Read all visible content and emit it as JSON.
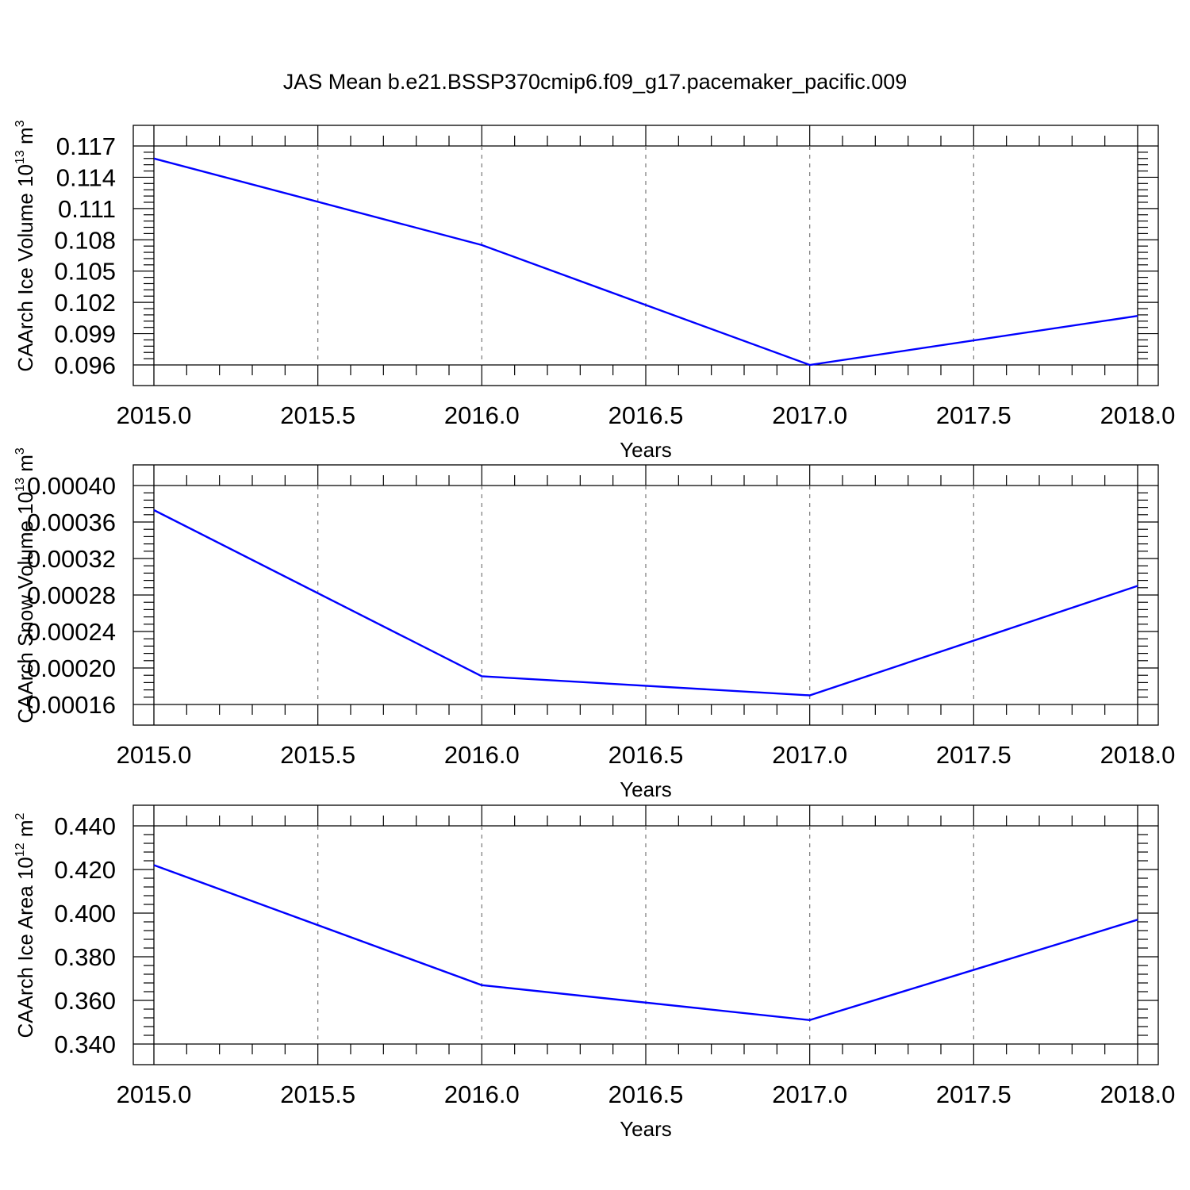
{
  "title": "JAS Mean b.e21.BSSP370cmip6.f09_g17.pacemaker_pacific.009",
  "colors": {
    "series": "#0000ff",
    "axes": "#000000",
    "grid": "#777777"
  },
  "chart_data": [
    {
      "type": "line",
      "ylabel": "CAArch Ice Volume 10",
      "ylabel_exp": "13",
      "ylabel_unit": " m",
      "ylabel_unit_exp": "3",
      "xlabel": "Years",
      "xlim": [
        2015.0,
        2018.0
      ],
      "ylim": [
        0.096,
        0.117
      ],
      "xticks": [
        "2015.0",
        "2015.5",
        "2016.0",
        "2016.5",
        "2017.0",
        "2017.5",
        "2018.0"
      ],
      "yticks": [
        "0.096",
        "0.099",
        "0.102",
        "0.105",
        "0.108",
        "0.111",
        "0.114",
        "0.117"
      ],
      "grid": "vertical dashed at major x ticks",
      "series": [
        {
          "x": [
            2015,
            2016,
            2017,
            2018
          ],
          "values": [
            0.1158,
            0.1075,
            0.096,
            0.1007
          ]
        }
      ]
    },
    {
      "type": "line",
      "ylabel": "CAArch Snow Volume 10",
      "ylabel_exp": "13",
      "ylabel_unit": " m",
      "ylabel_unit_exp": "3",
      "xlabel": "Years",
      "xlim": [
        2015.0,
        2018.0
      ],
      "ylim": [
        0.00016,
        0.0004
      ],
      "xticks": [
        "2015.0",
        "2015.5",
        "2016.0",
        "2016.5",
        "2017.0",
        "2017.5",
        "2018.0"
      ],
      "yticks": [
        "0.00016",
        "0.00020",
        "0.00024",
        "0.00028",
        "0.00032",
        "0.00036",
        "0.00040"
      ],
      "grid": "vertical dashed at major x ticks",
      "series": [
        {
          "x": [
            2015,
            2016,
            2017,
            2018
          ],
          "values": [
            0.000373,
            0.000191,
            0.00017,
            0.00029
          ]
        }
      ]
    },
    {
      "type": "line",
      "ylabel": "CAArch Ice Area 10",
      "ylabel_exp": "12",
      "ylabel_unit": " m",
      "ylabel_unit_exp": "2",
      "xlabel": "Years",
      "xlim": [
        2015.0,
        2018.0
      ],
      "ylim": [
        0.34,
        0.44
      ],
      "xticks": [
        "2015.0",
        "2015.5",
        "2016.0",
        "2016.5",
        "2017.0",
        "2017.5",
        "2018.0"
      ],
      "yticks": [
        "0.340",
        "0.360",
        "0.380",
        "0.400",
        "0.420",
        "0.440"
      ],
      "grid": "vertical dashed at major x ticks",
      "series": [
        {
          "x": [
            2015,
            2016,
            2017,
            2018
          ],
          "values": [
            0.422,
            0.367,
            0.351,
            0.397
          ]
        }
      ]
    }
  ]
}
